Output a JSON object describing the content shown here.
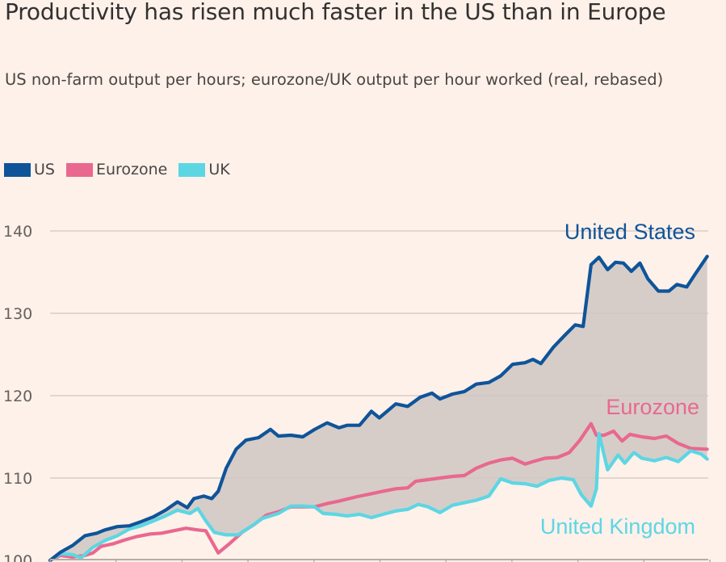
{
  "header": {
    "title": "Productivity has risen much faster in the US than in Europe",
    "subtitle": "US non-farm output per hours; eurozone/UK output per hour worked (real, rebased)"
  },
  "legend": [
    {
      "name": "US",
      "color": "#0f5499"
    },
    {
      "name": "Eurozone",
      "color": "#e9688f"
    },
    {
      "name": "UK",
      "color": "#5dd6e3"
    }
  ],
  "chart_data": {
    "type": "line",
    "title": "Productivity has risen much faster in the US than in Europe",
    "subtitle": "US non-farm output per hours; eurozone/UK output per hour worked (real, rebased)",
    "xlabel": "",
    "ylabel": "",
    "x_note": "x in tick-interval units (0-10); x-axis labels not visible",
    "xlim": [
      0,
      10
    ],
    "x_ticks": [
      0,
      1,
      2,
      3,
      4,
      5,
      6,
      7,
      8,
      9,
      10
    ],
    "ylim": [
      100,
      140
    ],
    "y_ticks": [
      100,
      110,
      120,
      130,
      140
    ],
    "y_tick_labels": [
      "100",
      "110",
      "120",
      "130",
      "140"
    ],
    "grid": true,
    "legend_position": "top-left",
    "fill_between": {
      "upper": "US",
      "lower": "UK",
      "color": "#cfc7c3"
    },
    "series": [
      {
        "name": "US",
        "label": "United States",
        "color": "#0f5499",
        "points": [
          [
            0,
            100
          ],
          [
            0.16,
            101
          ],
          [
            0.34,
            101.8
          ],
          [
            0.53,
            103
          ],
          [
            0.71,
            103.3
          ],
          [
            0.83,
            103.7
          ],
          [
            1.02,
            104.1
          ],
          [
            1.2,
            104.2
          ],
          [
            1.38,
            104.7
          ],
          [
            1.57,
            105.3
          ],
          [
            1.75,
            106.1
          ],
          [
            1.93,
            107.1
          ],
          [
            2.08,
            106.4
          ],
          [
            2.18,
            107.5
          ],
          [
            2.33,
            107.8
          ],
          [
            2.45,
            107.5
          ],
          [
            2.55,
            108.4
          ],
          [
            2.67,
            111.2
          ],
          [
            2.82,
            113.5
          ],
          [
            2.97,
            114.6
          ],
          [
            3.16,
            114.9
          ],
          [
            3.34,
            115.9
          ],
          [
            3.46,
            115.1
          ],
          [
            3.65,
            115.2
          ],
          [
            3.83,
            115
          ],
          [
            4.01,
            115.9
          ],
          [
            4.2,
            116.7
          ],
          [
            4.38,
            116.1
          ],
          [
            4.5,
            116.4
          ],
          [
            4.69,
            116.4
          ],
          [
            4.87,
            118.1
          ],
          [
            4.99,
            117.3
          ],
          [
            5.24,
            119
          ],
          [
            5.42,
            118.7
          ],
          [
            5.61,
            119.8
          ],
          [
            5.79,
            120.3
          ],
          [
            5.91,
            119.6
          ],
          [
            6.1,
            120.2
          ],
          [
            6.28,
            120.5
          ],
          [
            6.46,
            121.4
          ],
          [
            6.65,
            121.6
          ],
          [
            6.83,
            122.4
          ],
          [
            7.01,
            123.8
          ],
          [
            7.2,
            124
          ],
          [
            7.32,
            124.4
          ],
          [
            7.44,
            123.9
          ],
          [
            7.63,
            125.9
          ],
          [
            7.81,
            127.4
          ],
          [
            7.96,
            128.6
          ],
          [
            8.08,
            128.4
          ],
          [
            8.2,
            135.9
          ],
          [
            8.32,
            136.8
          ],
          [
            8.45,
            135.3
          ],
          [
            8.57,
            136.2
          ],
          [
            8.69,
            136.1
          ],
          [
            8.81,
            135.1
          ],
          [
            8.94,
            136.1
          ],
          [
            9.06,
            134.2
          ],
          [
            9.22,
            132.7
          ],
          [
            9.38,
            132.7
          ],
          [
            9.5,
            133.5
          ],
          [
            9.65,
            133.2
          ],
          [
            9.79,
            134.9
          ],
          [
            9.96,
            136.9
          ]
        ]
      },
      {
        "name": "Eurozone",
        "label": "Eurozone",
        "color": "#e9688f",
        "points": [
          [
            0,
            100
          ],
          [
            0.16,
            100.6
          ],
          [
            0.34,
            100.4
          ],
          [
            0.53,
            100.6
          ],
          [
            0.65,
            100.9
          ],
          [
            0.77,
            101.7
          ],
          [
            0.95,
            102
          ],
          [
            1.14,
            102.5
          ],
          [
            1.32,
            102.9
          ],
          [
            1.51,
            103.2
          ],
          [
            1.69,
            103.3
          ],
          [
            1.87,
            103.6
          ],
          [
            2.06,
            103.9
          ],
          [
            2.24,
            103.7
          ],
          [
            2.36,
            103.6
          ],
          [
            2.55,
            100.9
          ],
          [
            2.73,
            102.1
          ],
          [
            2.91,
            103.4
          ],
          [
            3.1,
            104.4
          ],
          [
            3.28,
            105.5
          ],
          [
            3.46,
            105.9
          ],
          [
            3.65,
            106.5
          ],
          [
            3.83,
            106.5
          ],
          [
            4.01,
            106.5
          ],
          [
            4.2,
            106.9
          ],
          [
            4.38,
            107.2
          ],
          [
            4.63,
            107.7
          ],
          [
            4.87,
            108.1
          ],
          [
            5.05,
            108.4
          ],
          [
            5.24,
            108.7
          ],
          [
            5.42,
            108.8
          ],
          [
            5.54,
            109.6
          ],
          [
            5.73,
            109.8
          ],
          [
            5.91,
            110
          ],
          [
            6.1,
            110.2
          ],
          [
            6.28,
            110.3
          ],
          [
            6.46,
            111.2
          ],
          [
            6.65,
            111.8
          ],
          [
            6.83,
            112.2
          ],
          [
            7.01,
            112.4
          ],
          [
            7.2,
            111.7
          ],
          [
            7.32,
            112
          ],
          [
            7.5,
            112.4
          ],
          [
            7.69,
            112.5
          ],
          [
            7.87,
            113.1
          ],
          [
            8.03,
            114.6
          ],
          [
            8.2,
            116.6
          ],
          [
            8.28,
            115.2
          ],
          [
            8.4,
            115.2
          ],
          [
            8.54,
            115.7
          ],
          [
            8.67,
            114.5
          ],
          [
            8.79,
            115.3
          ],
          [
            8.97,
            115
          ],
          [
            9.16,
            114.8
          ],
          [
            9.34,
            115.1
          ],
          [
            9.52,
            114.2
          ],
          [
            9.71,
            113.6
          ],
          [
            9.96,
            113.5
          ]
        ]
      },
      {
        "name": "UK",
        "label": "United Kingdom",
        "color": "#5dd6e3",
        "points": [
          [
            0,
            100
          ],
          [
            0.16,
            100.8
          ],
          [
            0.34,
            100.7
          ],
          [
            0.47,
            100.3
          ],
          [
            0.65,
            101.6
          ],
          [
            0.83,
            102.4
          ],
          [
            1.02,
            103
          ],
          [
            1.2,
            103.8
          ],
          [
            1.38,
            104.2
          ],
          [
            1.57,
            104.8
          ],
          [
            1.75,
            105.4
          ],
          [
            1.93,
            106.1
          ],
          [
            2.12,
            105.7
          ],
          [
            2.24,
            106.3
          ],
          [
            2.36,
            104.8
          ],
          [
            2.49,
            103.4
          ],
          [
            2.67,
            103.1
          ],
          [
            2.85,
            103.1
          ],
          [
            3.04,
            104.1
          ],
          [
            3.22,
            105.1
          ],
          [
            3.46,
            105.7
          ],
          [
            3.65,
            106.6
          ],
          [
            3.83,
            106.6
          ],
          [
            4.01,
            106.5
          ],
          [
            4.14,
            105.7
          ],
          [
            4.32,
            105.6
          ],
          [
            4.5,
            105.4
          ],
          [
            4.69,
            105.6
          ],
          [
            4.87,
            105.2
          ],
          [
            5.05,
            105.6
          ],
          [
            5.24,
            106
          ],
          [
            5.42,
            106.2
          ],
          [
            5.58,
            106.8
          ],
          [
            5.73,
            106.5
          ],
          [
            5.91,
            105.8
          ],
          [
            6.1,
            106.7
          ],
          [
            6.28,
            107
          ],
          [
            6.46,
            107.3
          ],
          [
            6.65,
            107.8
          ],
          [
            6.83,
            109.9
          ],
          [
            7.01,
            109.4
          ],
          [
            7.2,
            109.3
          ],
          [
            7.38,
            109
          ],
          [
            7.56,
            109.7
          ],
          [
            7.75,
            110
          ],
          [
            7.93,
            109.8
          ],
          [
            8.05,
            108
          ],
          [
            8.2,
            106.6
          ],
          [
            8.28,
            108.7
          ],
          [
            8.32,
            115.4
          ],
          [
            8.45,
            111
          ],
          [
            8.61,
            112.8
          ],
          [
            8.71,
            111.8
          ],
          [
            8.85,
            113.1
          ],
          [
            8.97,
            112.4
          ],
          [
            9.16,
            112.1
          ],
          [
            9.34,
            112.5
          ],
          [
            9.52,
            112
          ],
          [
            9.71,
            113.3
          ],
          [
            9.87,
            112.9
          ],
          [
            9.96,
            112.3
          ]
        ]
      }
    ],
    "annotations": [
      {
        "text": "United States",
        "series": "US"
      },
      {
        "text": "Eurozone",
        "series": "Eurozone"
      },
      {
        "text": "United Kingdom",
        "series": "UK"
      }
    ]
  }
}
